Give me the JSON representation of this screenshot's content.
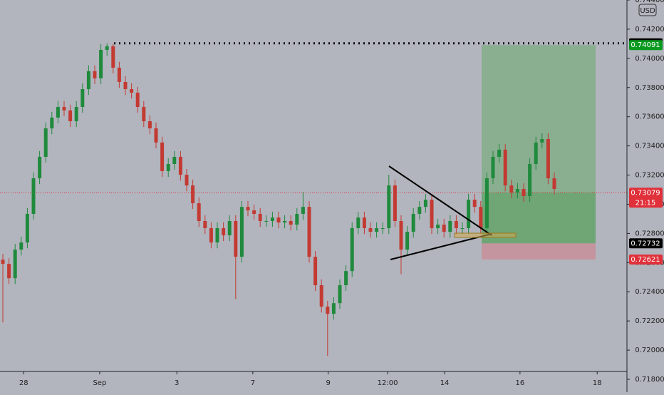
{
  "chart_data": {
    "type": "candlestick",
    "currency": "USD",
    "countdown": "21:15",
    "colors": {
      "up": "#1f8a3c",
      "down": "#c33a32"
    },
    "xlim": [
      -0.465,
      101.86
    ],
    "xticks": [
      {
        "value": 3.4,
        "label": "28"
      },
      {
        "value": 15.8,
        "label": "Sep"
      },
      {
        "value": 28.4,
        "label": "3"
      },
      {
        "value": 40.8,
        "label": "7"
      },
      {
        "value": 53.1,
        "label": "9"
      },
      {
        "value": 62.8,
        "label": "12:00"
      },
      {
        "value": 72.1,
        "label": "14"
      },
      {
        "value": 84.4,
        "label": "16"
      },
      {
        "value": 97,
        "label": "18"
      }
    ],
    "ylim": [
      0.71712,
      0.744
    ],
    "yticks": [
      {
        "value": 0.718,
        "label": "0.71800"
      },
      {
        "value": 0.72,
        "label": "0.72000"
      },
      {
        "value": 0.722,
        "label": "0.72200"
      },
      {
        "value": 0.724,
        "label": "0.72400"
      },
      {
        "value": 0.726,
        "label": "0.72600"
      },
      {
        "value": 0.728,
        "label": "0.72800"
      },
      {
        "value": 0.73,
        "label": "0.73000"
      },
      {
        "value": 0.732,
        "label": "0.73200"
      },
      {
        "value": 0.734,
        "label": "0.73400"
      },
      {
        "value": 0.736,
        "label": "0.73600"
      },
      {
        "value": 0.738,
        "label": "0.73800"
      },
      {
        "value": 0.74,
        "label": "0.74000"
      },
      {
        "value": 0.742,
        "label": "0.74200"
      },
      {
        "value": 0.744,
        "label": "0.74400"
      }
    ],
    "grid": false,
    "open": [
      0.7262,
      0.72591,
      0.72493,
      0.72689,
      0.72738,
      0.72934,
      0.73178,
      0.73325,
      0.7352,
      0.73594,
      0.73667,
      0.73643,
      0.73569,
      0.73667,
      0.73789,
      0.73912,
      0.73863,
      0.74058,
      0.74083,
      0.73936,
      0.73838,
      0.73789,
      0.73765,
      0.73667,
      0.73569,
      0.7352,
      0.73423,
      0.73227,
      0.73276,
      0.73325,
      0.73202,
      0.73129,
      0.73007,
      0.72885,
      0.72836,
      0.72738,
      0.72836,
      0.72787,
      0.72885,
      0.7264,
      0.72982,
      0.72958,
      0.72934,
      0.72885,
      0.72885,
      0.72909,
      0.72875,
      0.72885,
      0.7286,
      0.72934,
      0.72982,
      0.7264,
      0.72445,
      0.72298,
      0.72249,
      0.72322,
      0.72445,
      0.72542,
      0.72836,
      0.72909,
      0.72836,
      0.72811,
      0.72836,
      0.72836,
      0.73129,
      0.72885,
      0.72689,
      0.72811,
      0.72934,
      0.72982,
      0.73031,
      0.72836,
      0.7286,
      0.72811,
      0.72885,
      0.72836,
      0.72836,
      0.73031,
      0.72982,
      0.72836,
      0.73178,
      0.73325,
      0.73374,
      0.73129,
      0.7308,
      0.73105,
      0.73056,
      0.73276,
      0.73423,
      0.73447,
      0.73178
    ],
    "high": [
      0.7266,
      0.72631,
      0.72729,
      0.72778,
      0.72974,
      0.73218,
      0.73365,
      0.7356,
      0.73634,
      0.73707,
      0.73707,
      0.73683,
      0.73707,
      0.73829,
      0.73952,
      0.73952,
      0.74098,
      0.74103,
      0.741,
      0.73976,
      0.73878,
      0.73829,
      0.73805,
      0.73707,
      0.73609,
      0.7356,
      0.73463,
      0.73316,
      0.73365,
      0.73365,
      0.73242,
      0.73169,
      0.73047,
      0.72925,
      0.72876,
      0.72876,
      0.72876,
      0.72925,
      0.72925,
      0.73022,
      0.73022,
      0.72998,
      0.72974,
      0.72925,
      0.72949,
      0.72949,
      0.72925,
      0.72925,
      0.72974,
      0.73082,
      0.73022,
      0.7268,
      0.72485,
      0.72338,
      0.72362,
      0.72485,
      0.72582,
      0.72876,
      0.72949,
      0.72949,
      0.72876,
      0.72876,
      0.72876,
      0.73202,
      0.73169,
      0.72925,
      0.72851,
      0.72974,
      0.73022,
      0.73071,
      0.73071,
      0.729,
      0.729,
      0.72925,
      0.72925,
      0.72876,
      0.73071,
      0.73071,
      0.73022,
      0.73218,
      0.73365,
      0.73414,
      0.73414,
      0.73169,
      0.73145,
      0.73145,
      0.73316,
      0.73463,
      0.73487,
      0.73487,
      0.73218
    ],
    "low": [
      0.7219,
      0.72453,
      0.72453,
      0.72649,
      0.72698,
      0.72894,
      0.73138,
      0.73285,
      0.7348,
      0.73554,
      0.73603,
      0.73529,
      0.73529,
      0.73627,
      0.73749,
      0.73823,
      0.73823,
      0.74018,
      0.73896,
      0.73798,
      0.73749,
      0.73725,
      0.73627,
      0.73529,
      0.7348,
      0.73383,
      0.73187,
      0.73187,
      0.73236,
      0.73162,
      0.73089,
      0.72967,
      0.72845,
      0.72796,
      0.72698,
      0.72698,
      0.72747,
      0.72747,
      0.7235,
      0.726,
      0.72918,
      0.72894,
      0.72845,
      0.72845,
      0.72845,
      0.72835,
      0.72835,
      0.7282,
      0.7282,
      0.72894,
      0.726,
      0.72405,
      0.72258,
      0.7196,
      0.72209,
      0.72282,
      0.72405,
      0.72502,
      0.72796,
      0.72796,
      0.72771,
      0.72771,
      0.72796,
      0.72796,
      0.72845,
      0.7252,
      0.72649,
      0.72771,
      0.72894,
      0.72942,
      0.72796,
      0.72796,
      0.72771,
      0.72771,
      0.72796,
      0.72796,
      0.72796,
      0.72942,
      0.72796,
      0.72796,
      0.73138,
      0.73285,
      0.73089,
      0.7304,
      0.7304,
      0.73016,
      0.73016,
      0.73236,
      0.73383,
      0.73138,
      0.73065
    ],
    "close": [
      0.72591,
      0.72493,
      0.72689,
      0.72738,
      0.72934,
      0.73178,
      0.73325,
      0.7352,
      0.73594,
      0.73667,
      0.73643,
      0.73569,
      0.73667,
      0.73789,
      0.73912,
      0.73863,
      0.74058,
      0.74083,
      0.73936,
      0.73838,
      0.73789,
      0.73765,
      0.73667,
      0.73569,
      0.7352,
      0.73423,
      0.73227,
      0.73276,
      0.73325,
      0.73202,
      0.73129,
      0.73007,
      0.72885,
      0.72836,
      0.72738,
      0.72836,
      0.72787,
      0.72885,
      0.7264,
      0.72982,
      0.72958,
      0.72934,
      0.72885,
      0.72885,
      0.72909,
      0.72875,
      0.72885,
      0.7286,
      0.72934,
      0.72982,
      0.7264,
      0.72445,
      0.72298,
      0.72249,
      0.72322,
      0.72445,
      0.72542,
      0.72836,
      0.72909,
      0.72836,
      0.72811,
      0.72836,
      0.72836,
      0.73129,
      0.72885,
      0.72689,
      0.72811,
      0.72934,
      0.72982,
      0.73031,
      0.72836,
      0.7286,
      0.72811,
      0.72885,
      0.72836,
      0.72836,
      0.73031,
      0.72982,
      0.72836,
      0.73178,
      0.73325,
      0.73374,
      0.73129,
      0.7308,
      0.73105,
      0.73056,
      0.73276,
      0.73423,
      0.73447,
      0.73178,
      0.73105
    ],
    "position": {
      "target": 0.74091,
      "entry": 0.72732,
      "stop": 0.72621
    },
    "markers": [
      {
        "value": 0.74103,
        "label": "0.74103",
        "color": "#000000"
      },
      {
        "value": 0.74091,
        "label": "0.74091",
        "color": "#0a9a20"
      },
      {
        "value": 0.73079,
        "label": "0.73079",
        "color": "#e0303a"
      },
      {
        "value": 0.72732,
        "label": "0.72732",
        "color": "#000000"
      },
      {
        "value": 0.72621,
        "label": "0.72621",
        "color": "#e0303a"
      }
    ]
  }
}
